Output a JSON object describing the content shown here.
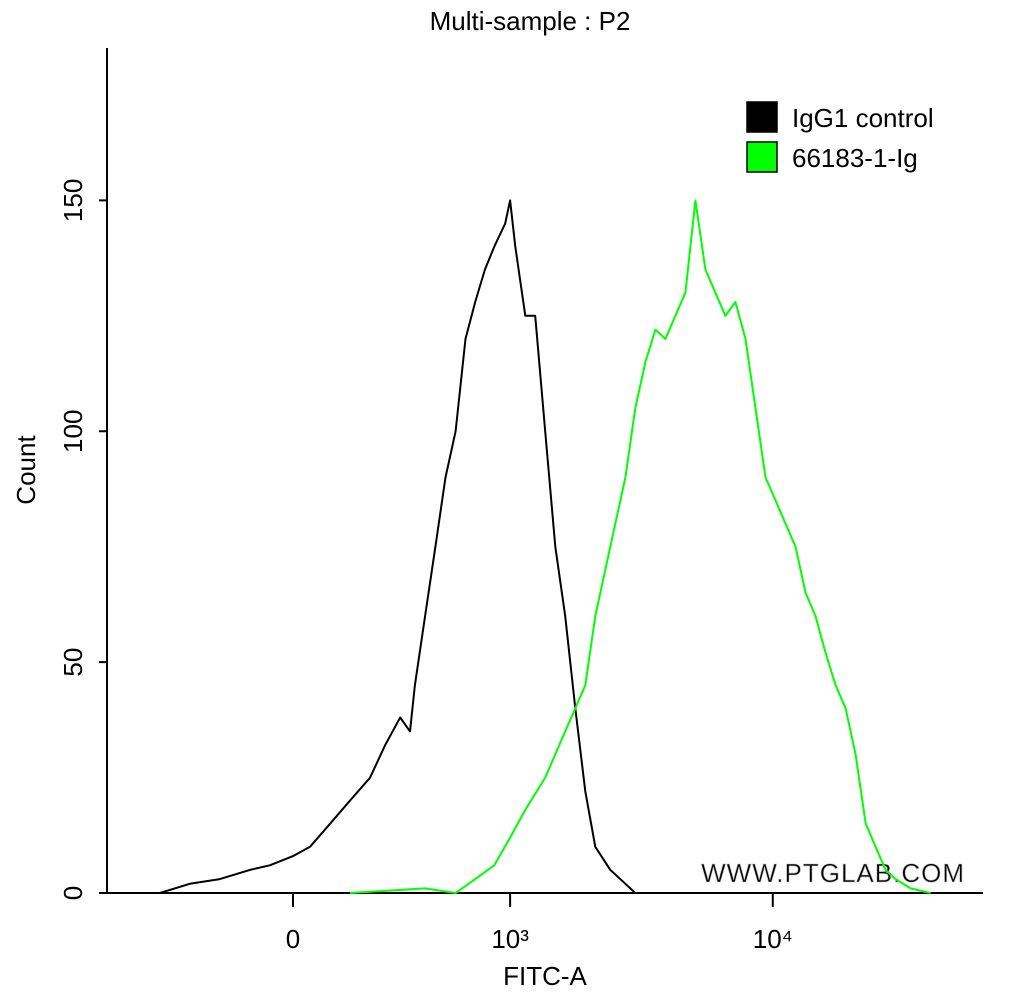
{
  "chart_data": {
    "type": "histogram-overlay",
    "title": "Multi-sample : P2",
    "x_label": "FITC-A",
    "y_label": "Count",
    "xscale": "biexponential",
    "xlim": [
      -750,
      62000
    ],
    "ylim": [
      0,
      183
    ],
    "xticks": [
      0,
      {
        "value": 1000,
        "label": "10³"
      },
      {
        "value": 10000,
        "label": "10⁴"
      }
    ],
    "yticks": [
      0,
      50,
      100,
      150
    ],
    "legend": "top-right",
    "watermark": "WWW.PTGLAB.COM",
    "series": [
      {
        "name": "IgG1 control",
        "color": "#000000",
        "x": [
          -727,
          -445,
          -317,
          -211,
          -119,
          -63,
          0,
          46,
          102,
          160,
          224,
          276,
          333,
          373,
          394,
          440,
          490,
          543,
          600,
          660,
          724,
          793,
          865,
          956,
          1000,
          1048,
          1147,
          1253,
          1371,
          1499,
          1637,
          1789,
          1953,
          2133,
          2433,
          2775,
          3026
        ],
        "values": [
          0,
          0,
          2,
          3,
          5,
          6,
          8,
          10,
          15,
          20,
          25,
          32,
          38,
          35,
          45,
          60,
          75,
          90,
          100,
          120,
          128,
          135,
          140,
          145,
          150,
          140,
          125,
          125,
          100,
          75,
          60,
          40,
          22,
          10,
          5,
          2,
          0
        ]
      },
      {
        "name": "66183-1-Ig",
        "color": "#00ff00",
        "x": [
          160,
          440,
          600,
          724,
          865,
          1000,
          1147,
          1371,
          1637,
          1789,
          1953,
          2133,
          2433,
          2775,
          3026,
          3303,
          3604,
          3933,
          4291,
          4681,
          5107,
          5570,
          6077,
          6627,
          7231,
          7890,
          8608,
          9389,
          10244,
          11165,
          12176,
          13292,
          14493,
          15814,
          17245,
          18816,
          20526,
          22392,
          24414,
          26622,
          29047,
          33075,
          39342
        ],
        "values": [
          0,
          1,
          0,
          3,
          6,
          12,
          18,
          25,
          35,
          40,
          45,
          60,
          75,
          90,
          105,
          115,
          122,
          120,
          125,
          130,
          150,
          135,
          130,
          125,
          128,
          120,
          105,
          90,
          85,
          80,
          75,
          65,
          60,
          52,
          45,
          40,
          30,
          15,
          10,
          5,
          3,
          1,
          0
        ]
      }
    ]
  }
}
